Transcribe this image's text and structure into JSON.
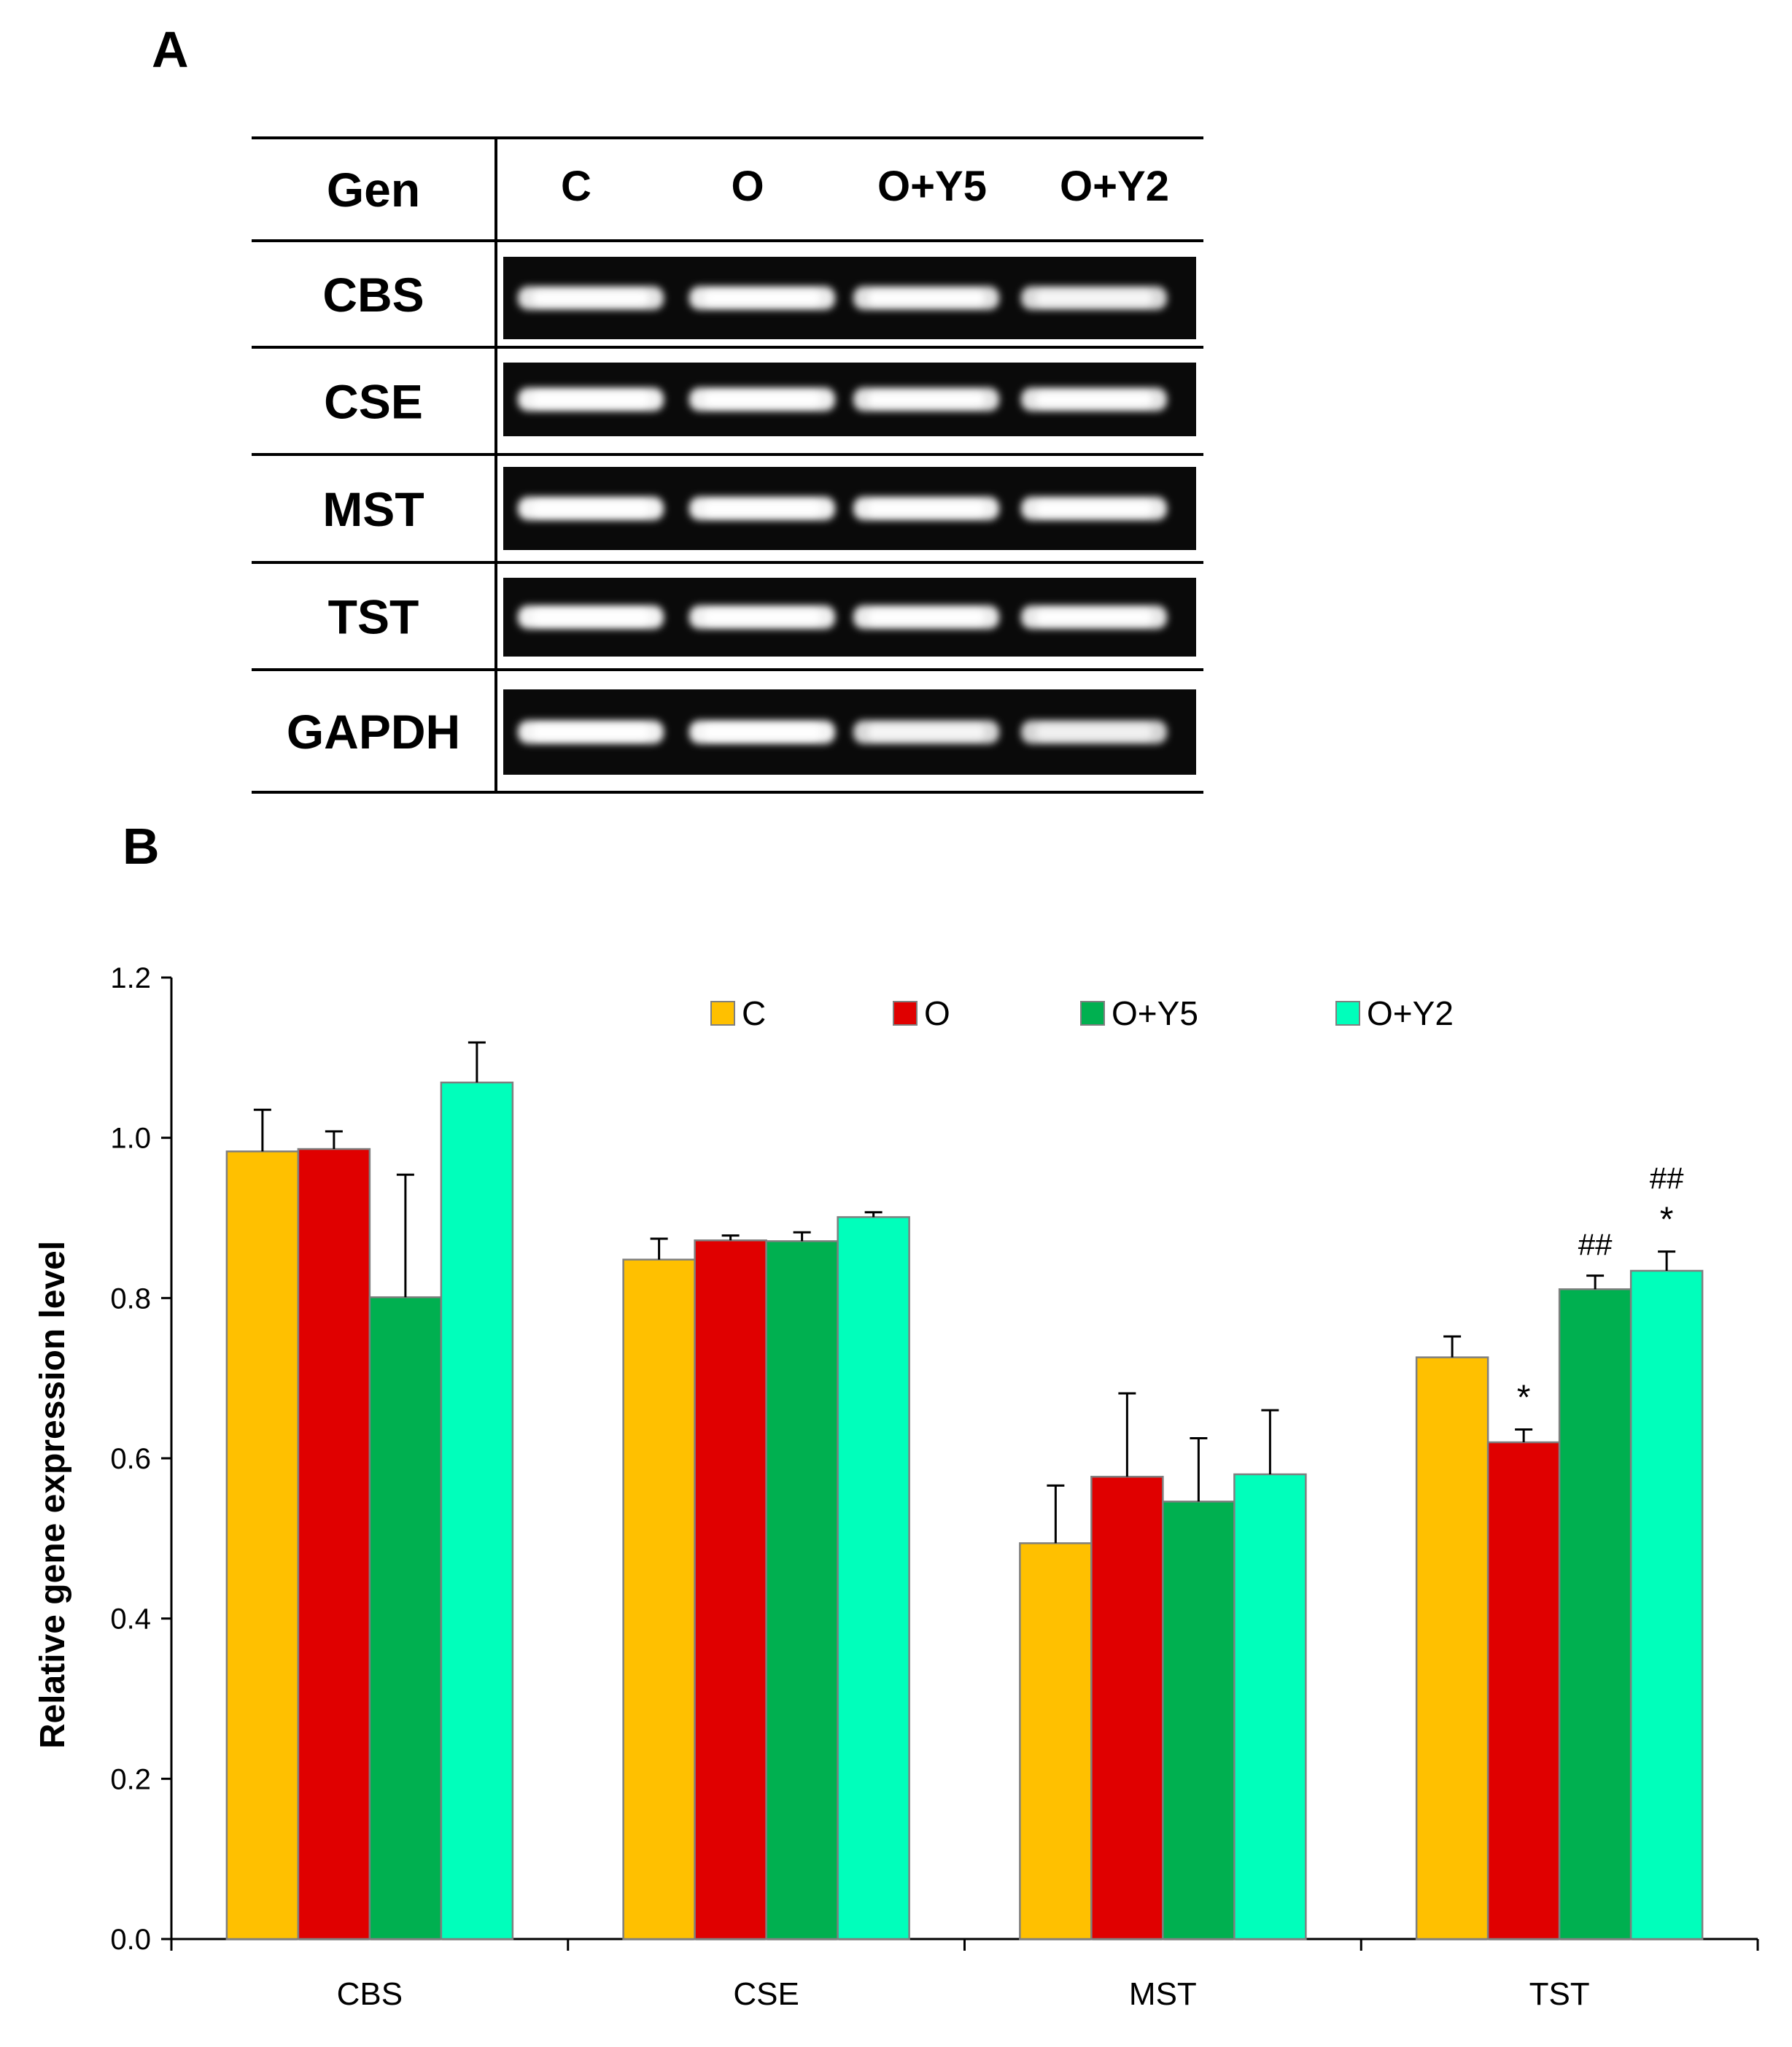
{
  "panel_a": {
    "label": "A",
    "header_gene": "Gen",
    "lanes": [
      "C",
      "O",
      "O+Y5",
      "O+Y2"
    ],
    "genes": [
      "CBS",
      "CSE",
      "MST",
      "TST",
      "GAPDH"
    ],
    "band_intensity": [
      [
        0.8,
        0.85,
        0.78,
        0.72
      ],
      [
        0.9,
        0.88,
        0.8,
        0.8
      ],
      [
        0.92,
        0.9,
        0.88,
        0.85
      ],
      [
        0.92,
        0.88,
        0.85,
        0.82
      ],
      [
        0.9,
        0.92,
        0.72,
        0.68
      ]
    ]
  },
  "panel_b": {
    "label": "B"
  },
  "chart_data": {
    "type": "bar",
    "title": "",
    "xlabel": "",
    "ylabel": "Relative gene expression level",
    "ylim": [
      0,
      1.2
    ],
    "yticks": [
      "0.0",
      "0.2",
      "0.4",
      "0.6",
      "0.8",
      "1.0",
      "1.2"
    ],
    "categories": [
      "CBS",
      "CSE",
      "MST",
      "TST"
    ],
    "series": [
      {
        "name": "C",
        "color": "#FFC000",
        "values": [
          0.983,
          0.848,
          0.494,
          0.726
        ],
        "errors": [
          0.052,
          0.026,
          0.072,
          0.026
        ]
      },
      {
        "name": "O",
        "color": "#E00000",
        "values": [
          0.986,
          0.872,
          0.577,
          0.62
        ],
        "errors": [
          0.022,
          0.006,
          0.104,
          0.016
        ]
      },
      {
        "name": "O+Y5",
        "color": "#00B050",
        "values": [
          0.801,
          0.871,
          0.546,
          0.811
        ],
        "errors": [
          0.153,
          0.011,
          0.079,
          0.017
        ]
      },
      {
        "name": "O+Y2",
        "color": "#00FFBB",
        "values": [
          1.069,
          0.901,
          0.58,
          0.834
        ],
        "errors": [
          0.05,
          0.006,
          0.08,
          0.024
        ]
      }
    ],
    "annotations": [
      {
        "category": "TST",
        "series": "O",
        "lines": [
          "*"
        ]
      },
      {
        "category": "TST",
        "series": "O+Y5",
        "lines": [
          "##"
        ]
      },
      {
        "category": "TST",
        "series": "O+Y2",
        "lines": [
          "##",
          "*"
        ]
      }
    ],
    "legend": "top-right"
  }
}
